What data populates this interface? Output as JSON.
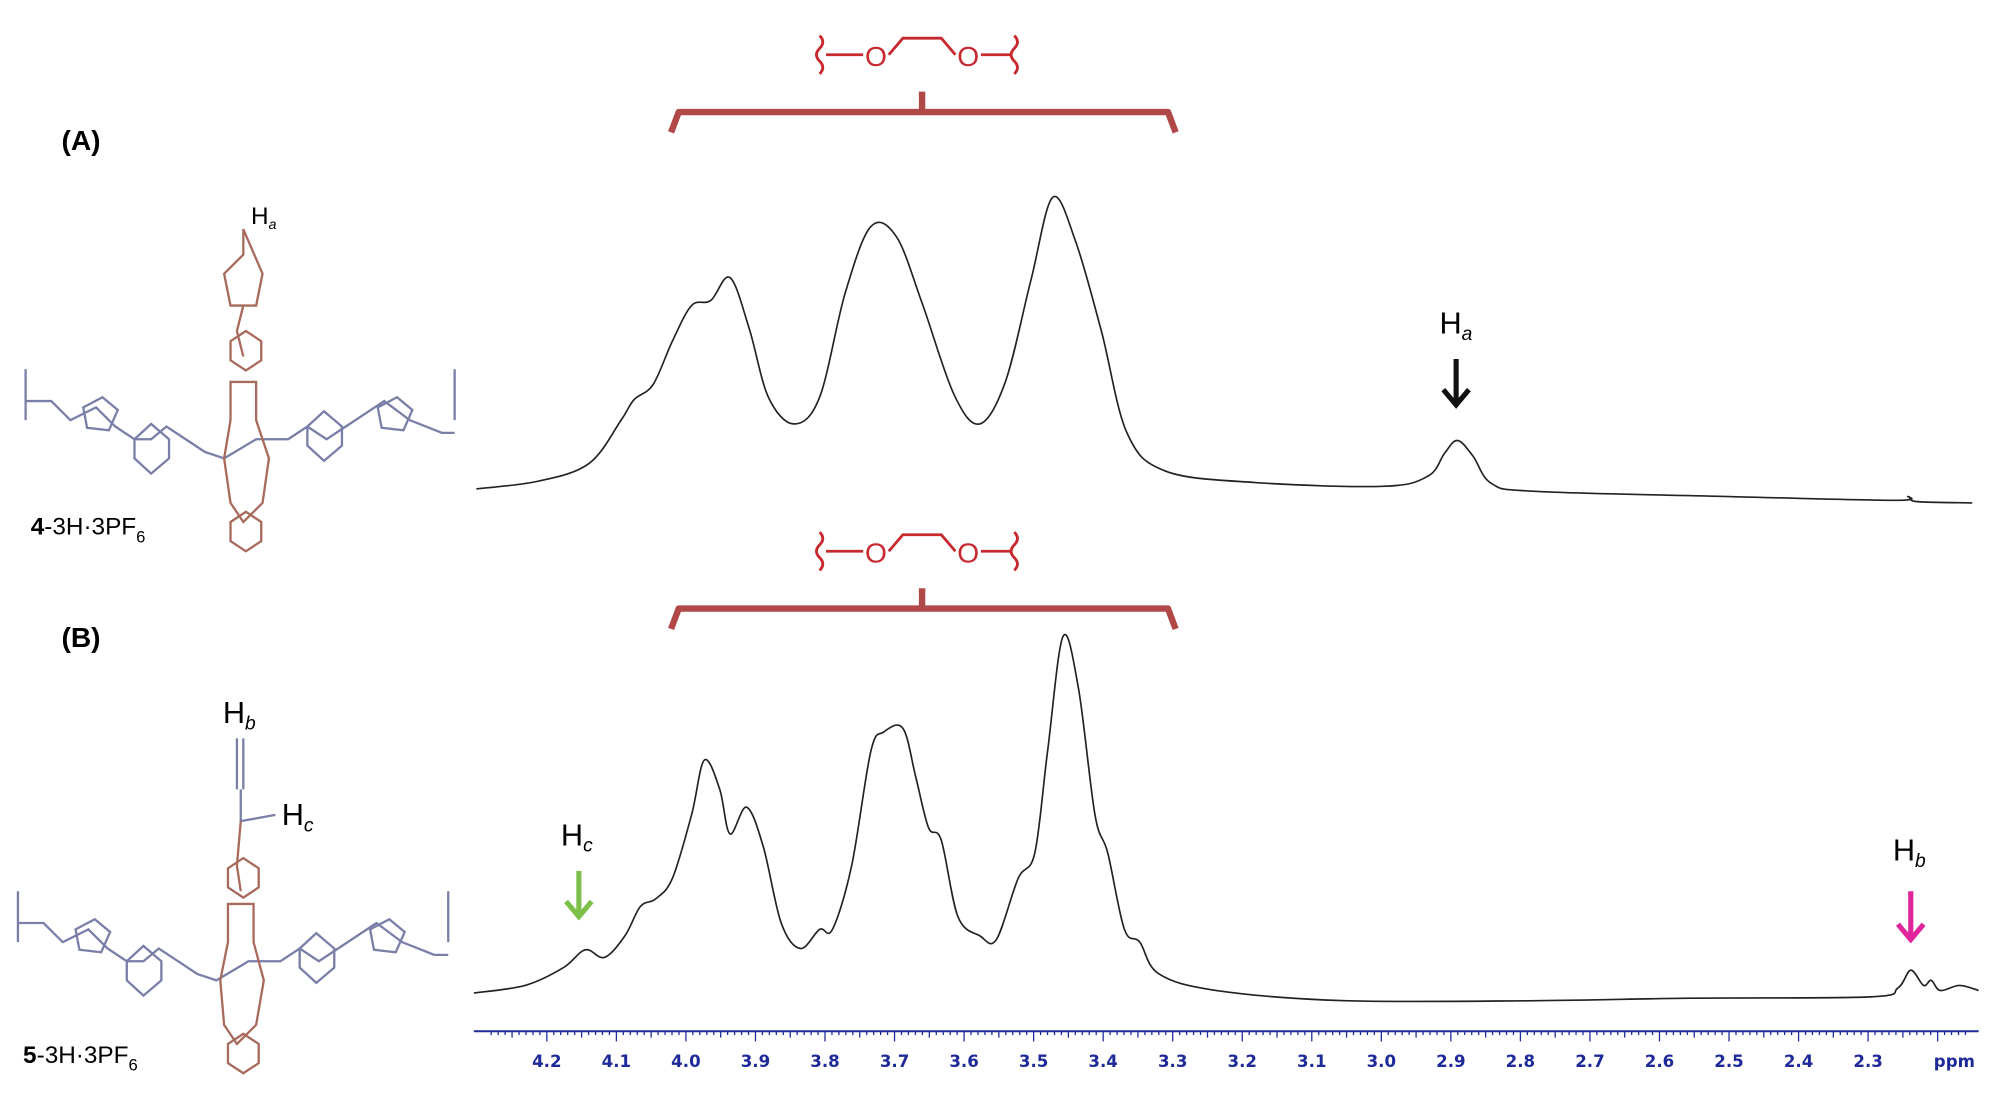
{
  "panels": [
    {
      "label": "(A)",
      "compound": {
        "number": "4",
        "rest": "-3H·3PF",
        "sub": "6"
      },
      "structure_labels": [
        {
          "main": "H",
          "sub": "a"
        }
      ],
      "bracket_atoms": [
        "O",
        "O"
      ],
      "peak_labels": [
        {
          "main": "H",
          "sub": "a"
        }
      ]
    },
    {
      "label": "(B)",
      "compound": {
        "number": "5",
        "rest": "-3H·3PF",
        "sub": "6"
      },
      "structure_labels": [
        {
          "main": "H",
          "sub": "b"
        },
        {
          "main": "H",
          "sub": "c"
        }
      ],
      "bracket_atoms": [
        "O",
        "O"
      ],
      "peak_labels": [
        {
          "main": "H",
          "sub": "c"
        },
        {
          "main": "H",
          "sub": "b"
        }
      ]
    }
  ],
  "axis": {
    "ticks": [
      "4.2",
      "4.1",
      "4.0",
      "3.9",
      "3.8",
      "3.7",
      "3.6",
      "3.5",
      "3.4",
      "3.3",
      "3.2",
      "3.1",
      "3.0",
      "2.9",
      "2.8",
      "2.7",
      "2.6",
      "2.5",
      "2.4",
      "2.3"
    ],
    "unit": "ppm"
  }
}
